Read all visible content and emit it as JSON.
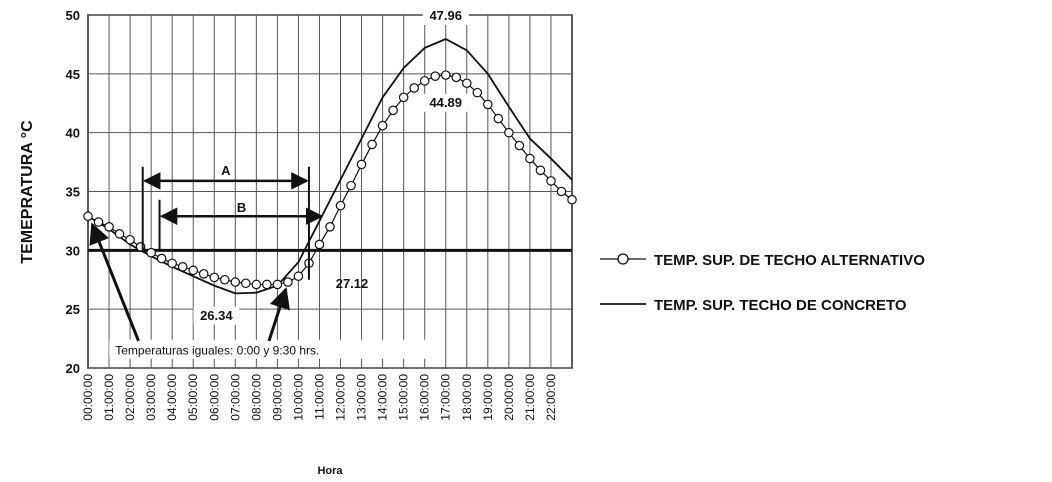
{
  "chart_data": {
    "type": "line",
    "title": "",
    "xlabel": "Hora",
    "ylabel": "TEMEPRATURA °C",
    "ylim": [
      20,
      50
    ],
    "yticks": [
      20,
      25,
      30,
      35,
      40,
      45,
      50
    ],
    "grid": true,
    "legend_position": "right",
    "categories": [
      "00:00:00",
      "01:00:00",
      "02:00:00",
      "03:00:00",
      "04:00:00",
      "05:00:00",
      "06:00:00",
      "07:00:00",
      "08:00:00",
      "09:00:00",
      "10:00:00",
      "11:00:00",
      "12:00:00",
      "13:00:00",
      "14:00:00",
      "15:00:00",
      "16:00:00",
      "17:00:00",
      "18:00:00",
      "19:00:00",
      "20:00:00",
      "21:00:00",
      "22:00:00"
    ],
    "series": [
      {
        "name": "TEMP. SUP. DE TECHO ALTERNATIVO",
        "marker": "circle",
        "x": [
          0,
          0.5,
          1,
          1.5,
          2,
          2.5,
          3,
          3.5,
          4,
          4.5,
          5,
          5.5,
          6,
          6.5,
          7,
          7.5,
          8,
          8.5,
          9,
          9.5,
          10,
          10.5,
          11,
          11.5,
          12,
          12.5,
          13,
          13.5,
          14,
          14.5,
          15,
          15.5,
          16,
          16.5,
          17,
          17.5,
          18,
          18.5,
          19,
          19.5,
          20,
          20.5,
          21,
          21.5,
          22,
          22.5,
          23
        ],
        "y": [
          32.9,
          32.4,
          32.0,
          31.4,
          30.9,
          30.3,
          29.8,
          29.3,
          28.9,
          28.6,
          28.3,
          28.0,
          27.7,
          27.5,
          27.3,
          27.2,
          27.1,
          27.1,
          27.1,
          27.3,
          27.8,
          28.9,
          30.5,
          32.0,
          33.8,
          35.5,
          37.3,
          39.0,
          40.6,
          41.9,
          43.0,
          43.8,
          44.4,
          44.8,
          44.89,
          44.7,
          44.2,
          43.4,
          42.4,
          41.2,
          40.0,
          38.9,
          37.8,
          36.8,
          35.9,
          35.0,
          34.3
        ]
      },
      {
        "name": "TEMP. SUP. TECHO DE CONCRETO",
        "marker": "none",
        "x": [
          0,
          1,
          2,
          3,
          4,
          5,
          6,
          7,
          8,
          9,
          10,
          11,
          12,
          13,
          14,
          15,
          16,
          17,
          18,
          19,
          20,
          21,
          22,
          23
        ],
        "y": [
          32.9,
          31.8,
          30.5,
          29.5,
          28.6,
          27.8,
          27.0,
          26.34,
          26.4,
          27.0,
          29.0,
          32.5,
          36.0,
          39.5,
          43.0,
          45.5,
          47.2,
          47.96,
          47.0,
          45.0,
          42.2,
          39.5,
          37.8,
          36.0
        ]
      }
    ],
    "reference_line": {
      "y": 30
    },
    "annotations": {
      "max_concrete": "47.96",
      "max_alternative": "44.89",
      "min_concrete": "26.34",
      "min_alternative": "27.12",
      "arrow_a": "A",
      "arrow_b": "B",
      "note": "Temperaturas iguales: 0:00 y 9:30 hrs."
    }
  },
  "colors": {
    "line": "#111111",
    "grid": "#555555",
    "marker_fill": "#ffffff"
  }
}
